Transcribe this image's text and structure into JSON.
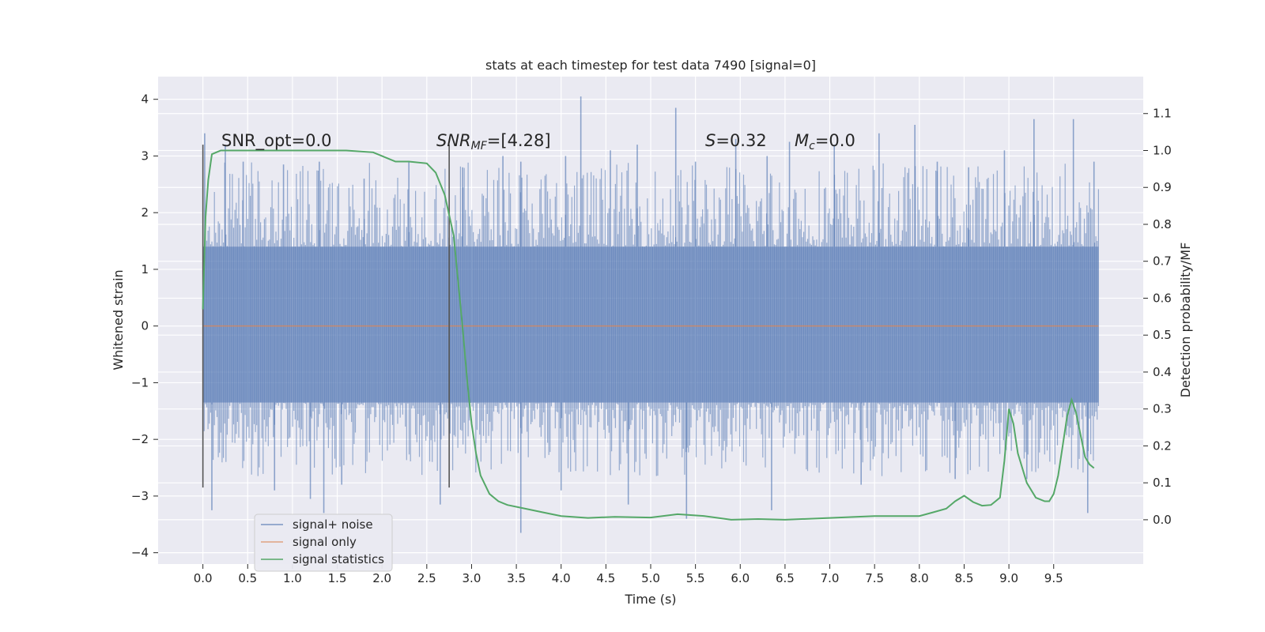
{
  "chart_data": {
    "type": "line",
    "title": "stats at each timestep for test data 7490 [signal=0]",
    "xlabel": "Time (s)",
    "ylabel_left": "Whitened strain",
    "ylabel_right": "Detection probability/MF",
    "xlim": [
      -0.5,
      10.5
    ],
    "ylim_left": [
      -4.2,
      4.4
    ],
    "ylim_right": [
      -0.12,
      1.2
    ],
    "x_ticks": [
      "0.0",
      "0.5",
      "1.0",
      "1.5",
      "2.0",
      "2.5",
      "3.0",
      "3.5",
      "4.0",
      "4.5",
      "5.0",
      "5.5",
      "6.0",
      "6.5",
      "7.0",
      "7.5",
      "8.0",
      "8.5",
      "9.0",
      "9.5"
    ],
    "x_tick_values": [
      0,
      0.5,
      1,
      1.5,
      2,
      2.5,
      3,
      3.5,
      4,
      4.5,
      5,
      5.5,
      6,
      6.5,
      7,
      7.5,
      8,
      8.5,
      9,
      9.5
    ],
    "y_ticks_left": [
      "4",
      "3",
      "2",
      "1",
      "0",
      "−1",
      "−2",
      "−3",
      "−4"
    ],
    "y_tick_values_left": [
      4,
      3,
      2,
      1,
      0,
      -1,
      -2,
      -3,
      -4
    ],
    "y_ticks_right": [
      "1.1",
      "1.0",
      "0.9",
      "0.8",
      "0.7",
      "0.6",
      "0.5",
      "0.4",
      "0.3",
      "0.2",
      "0.1",
      "0.0"
    ],
    "y_tick_values_right": [
      1.1,
      1.0,
      0.9,
      0.8,
      0.7,
      0.6,
      0.5,
      0.4,
      0.3,
      0.2,
      0.1,
      0.0
    ],
    "grid": true,
    "legend_position": "lower-left",
    "annotations": {
      "snr_opt": "SNR_opt=0.0",
      "snr_mf_name": "SNR",
      "snr_mf_sub": "MF",
      "snr_mf_value": "=[4.28]",
      "s_name": "S",
      "s_value": "=0.32",
      "mc_name": "M",
      "mc_sub": "c",
      "mc_value": "=0.0"
    },
    "markers": [
      {
        "x": 0.0,
        "y_top": 3.2,
        "y_bottom": -2.85
      },
      {
        "x": 2.75,
        "y_top": 3.2,
        "y_bottom": -2.85
      }
    ],
    "series": [
      {
        "name": "signal+ noise",
        "color": "#4c72b0",
        "axis": "left",
        "x_range": [
          0,
          10
        ],
        "band": [
          -1.35,
          1.4
        ],
        "spike_peaks": [
          {
            "x": 0.02,
            "y": 3.4
          },
          {
            "x": 0.25,
            "y": 3.2
          },
          {
            "x": 0.45,
            "y": 2.9
          },
          {
            "x": 0.9,
            "y": 2.85
          },
          {
            "x": 1.3,
            "y": 2.9
          },
          {
            "x": 1.8,
            "y": 2.6
          },
          {
            "x": 2.3,
            "y": 2.9
          },
          {
            "x": 2.9,
            "y": 2.8
          },
          {
            "x": 3.35,
            "y": 3.0
          },
          {
            "x": 3.55,
            "y": 2.9
          },
          {
            "x": 4.05,
            "y": 3.0
          },
          {
            "x": 4.22,
            "y": 4.05
          },
          {
            "x": 4.55,
            "y": 3.1
          },
          {
            "x": 4.85,
            "y": 3.2
          },
          {
            "x": 5.28,
            "y": 3.85
          },
          {
            "x": 5.5,
            "y": 2.9
          },
          {
            "x": 5.95,
            "y": 3.3
          },
          {
            "x": 6.3,
            "y": 3.0
          },
          {
            "x": 6.55,
            "y": 3.25
          },
          {
            "x": 7.05,
            "y": 3.2
          },
          {
            "x": 7.55,
            "y": 3.4
          },
          {
            "x": 7.95,
            "y": 3.55
          },
          {
            "x": 8.2,
            "y": 2.9
          },
          {
            "x": 8.55,
            "y": 2.8
          },
          {
            "x": 8.95,
            "y": 3.1
          },
          {
            "x": 9.28,
            "y": 3.65
          },
          {
            "x": 9.72,
            "y": 3.65
          },
          {
            "x": 9.95,
            "y": 2.9
          }
        ],
        "spike_troughs": [
          {
            "x": 0.1,
            "y": -3.25
          },
          {
            "x": 0.8,
            "y": -2.9
          },
          {
            "x": 1.2,
            "y": -3.05
          },
          {
            "x": 1.35,
            "y": -3.3
          },
          {
            "x": 1.55,
            "y": -2.8
          },
          {
            "x": 2.65,
            "y": -3.15
          },
          {
            "x": 3.55,
            "y": -3.65
          },
          {
            "x": 4.0,
            "y": -2.9
          },
          {
            "x": 4.75,
            "y": -3.15
          },
          {
            "x": 5.4,
            "y": -3.4
          },
          {
            "x": 6.35,
            "y": -3.25
          },
          {
            "x": 7.35,
            "y": -2.8
          },
          {
            "x": 8.4,
            "y": -2.7
          },
          {
            "x": 9.2,
            "y": -2.7
          },
          {
            "x": 9.88,
            "y": -3.3
          }
        ]
      },
      {
        "name": "signal only",
        "color": "#dd8452",
        "axis": "left",
        "x": [
          0,
          10
        ],
        "y": [
          0,
          0
        ]
      },
      {
        "name": "signal statistics",
        "color": "#55a868",
        "axis": "right",
        "x": [
          0.0,
          0.03,
          0.06,
          0.1,
          0.15,
          0.2,
          0.4,
          0.8,
          1.2,
          1.6,
          1.9,
          2.05,
          2.15,
          2.3,
          2.5,
          2.6,
          2.7,
          2.8,
          2.9,
          2.95,
          3.0,
          3.05,
          3.1,
          3.2,
          3.3,
          3.4,
          3.6,
          3.8,
          4.0,
          4.3,
          4.6,
          5.0,
          5.3,
          5.6,
          5.9,
          6.2,
          6.5,
          7.0,
          7.5,
          7.8,
          8.0,
          8.15,
          8.3,
          8.4,
          8.5,
          8.6,
          8.7,
          8.8,
          8.9,
          8.95,
          9.0,
          9.05,
          9.1,
          9.2,
          9.3,
          9.4,
          9.45,
          9.5,
          9.55,
          9.6,
          9.65,
          9.7,
          9.75,
          9.8,
          9.85,
          9.9,
          9.95
        ],
        "y": [
          0.57,
          0.82,
          0.92,
          0.99,
          0.995,
          1.0,
          1.0,
          1.0,
          1.0,
          1.0,
          0.995,
          0.98,
          0.97,
          0.97,
          0.965,
          0.94,
          0.88,
          0.77,
          0.52,
          0.38,
          0.26,
          0.18,
          0.12,
          0.07,
          0.05,
          0.04,
          0.03,
          0.02,
          0.01,
          0.005,
          0.008,
          0.006,
          0.015,
          0.01,
          0.0,
          0.002,
          0.0,
          0.005,
          0.01,
          0.01,
          0.01,
          0.02,
          0.03,
          0.05,
          0.065,
          0.048,
          0.038,
          0.04,
          0.06,
          0.16,
          0.3,
          0.26,
          0.18,
          0.1,
          0.06,
          0.05,
          0.05,
          0.07,
          0.12,
          0.2,
          0.28,
          0.325,
          0.29,
          0.23,
          0.17,
          0.15,
          0.14
        ]
      }
    ]
  }
}
